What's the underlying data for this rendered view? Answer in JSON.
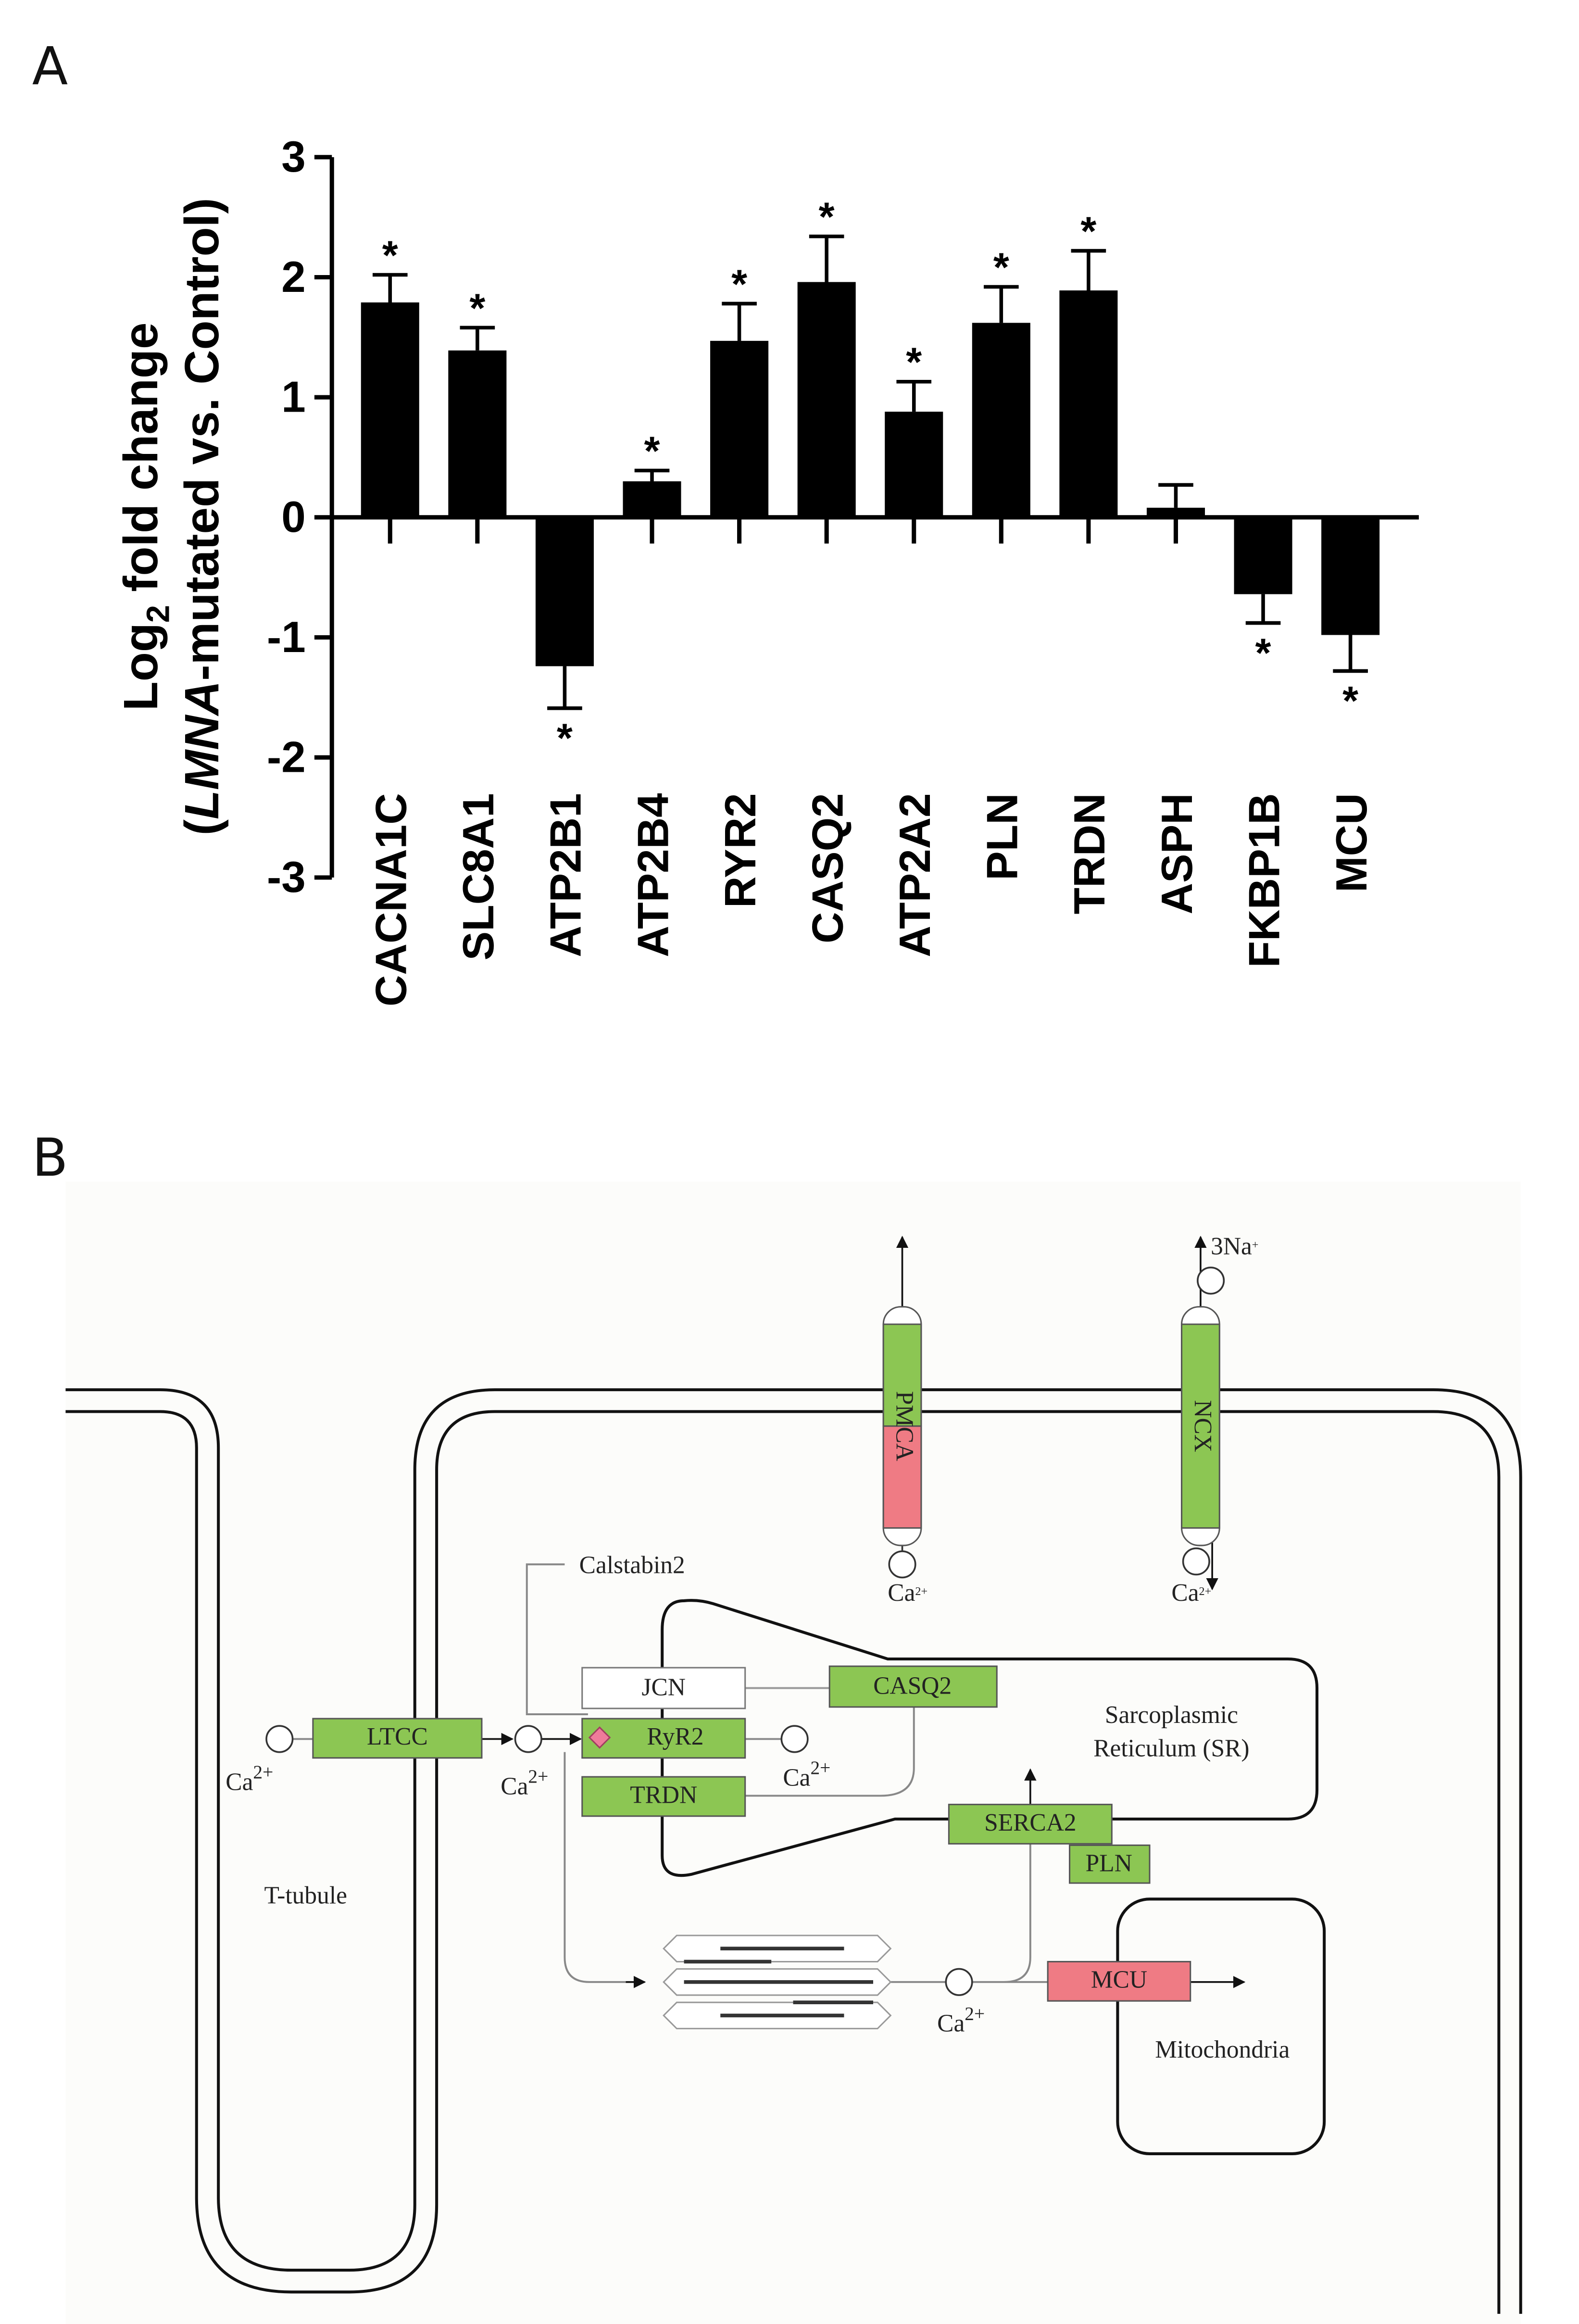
{
  "panel_labels": [
    "A",
    "B"
  ],
  "chart_data": {
    "type": "bar",
    "y_label": {
      "line1": [
        "Log",
        "2",
        "fold change"
      ],
      "line2": [
        "(",
        "LMNA",
        "-mutated vs. Control)"
      ]
    },
    "categories": [
      "CACNA1C",
      "SLC8A1",
      "ATP2B1",
      "ATP2B4",
      "RYR2",
      "CASQ2",
      "ATP2A2",
      "PLN",
      "TRDN",
      "ASPH",
      "FKBP1B",
      "MCU"
    ],
    "values": [
      1.79,
      1.39,
      -1.24,
      0.3,
      1.47,
      1.96,
      0.88,
      1.62,
      1.89,
      0.08,
      -0.64,
      -0.98
    ],
    "errors": [
      0.23,
      0.19,
      0.35,
      0.09,
      0.31,
      0.38,
      0.25,
      0.3,
      0.33,
      0.19,
      0.24,
      0.3
    ],
    "significance": [
      "*",
      "*",
      "*",
      "*",
      "*",
      "*",
      "*",
      "*",
      "*",
      null,
      "*",
      "*"
    ],
    "color": "#000000",
    "ylim": [
      -3,
      3
    ],
    "yticks": [
      -3,
      -2,
      -1,
      0,
      1,
      2,
      3
    ]
  },
  "diagram": {
    "proteins": {
      "pmca": "PMCA",
      "ncx": "NCX",
      "ltcc": "LTCC",
      "ryr2": "RyR2",
      "trdn": "TRDN",
      "jcn": "JCN",
      "casq2": "CASQ2",
      "serca2": "SERCA2",
      "pln": "PLN",
      "mcu": "MCU"
    },
    "calstabin": "Calstabin2",
    "compartments": {
      "sr": [
        "Sarcoplasmic",
        "Reticulum (SR)"
      ],
      "t_tubule": "T-tubule",
      "mitochondria": "Mitochondria"
    },
    "ions": [
      {
        "base": "3Na",
        "charge": "+"
      },
      {
        "base": "Ca",
        "charge": "2+"
      },
      {
        "base": "Ca",
        "charge": "2+"
      },
      {
        "base": "Ca",
        "charge": "2+"
      },
      {
        "base": "Ca",
        "charge": "2+"
      },
      {
        "base": "Ca",
        "charge": "2+"
      },
      {
        "base": "Ca",
        "charge": "2+"
      }
    ]
  }
}
